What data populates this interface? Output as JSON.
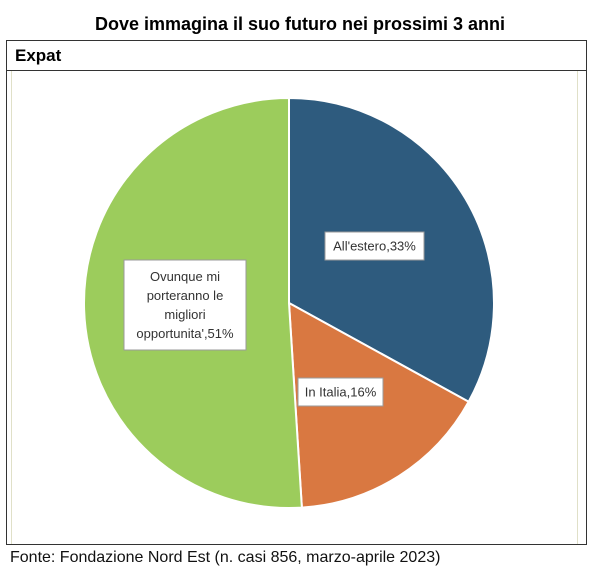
{
  "title": "Dove immagina il suo futuro nei prossimi 3 anni",
  "panel_title": "Expat",
  "source": "Fonte: Fondazione Nord Est (n. casi 856, marzo-aprile 2023)",
  "chart_data": {
    "type": "pie",
    "title": "Dove immagina il suo futuro nei prossimi 3 anni",
    "slices": [
      {
        "label": "All'estero",
        "value": 33,
        "color": "#2e5b7e",
        "label_text": [
          "All'estero,33%"
        ]
      },
      {
        "label": "In Italia",
        "value": 16,
        "color": "#d97841",
        "label_text": [
          "In Italia,16%"
        ]
      },
      {
        "label": "Ovunque mi porteranno le migliori opportunita'",
        "value": 51,
        "color": "#9ccc5c",
        "label_text": [
          "Ovunque mi",
          "porteranno le",
          "migliori",
          "opportunita',51%"
        ]
      }
    ]
  }
}
